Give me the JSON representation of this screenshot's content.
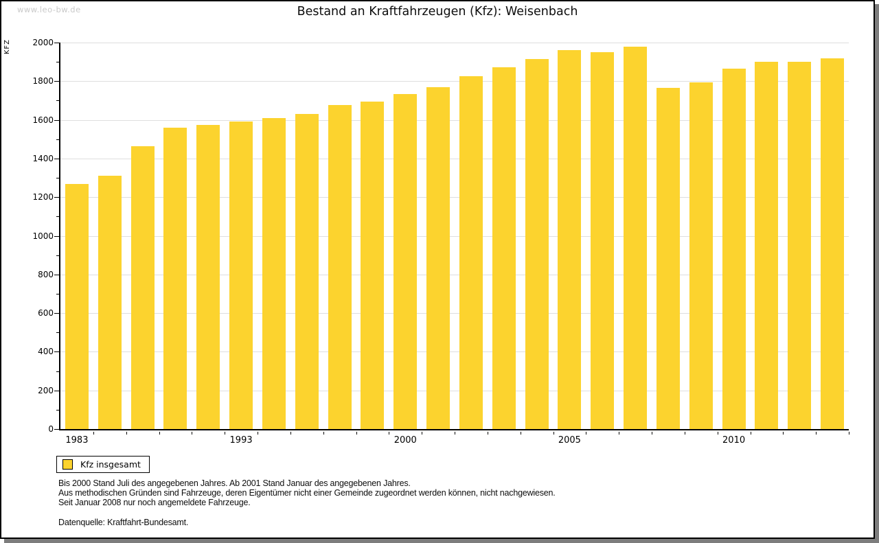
{
  "watermark": "www.leo-bw.de",
  "title": "Bestand an Kraftfahrzeugen (Kfz): Weisenbach",
  "y_axis_label": "KFZ",
  "legend": {
    "label": "Kfz insgesamt"
  },
  "footnotes": {
    "line1": "Bis 2000 Stand Juli des angegebenen Jahres. Ab 2001 Stand Januar des angegebenen Jahres.",
    "line2": "Aus methodischen Gründen sind Fahrzeuge, deren Eigentümer nicht einer Gemeinde zugeordnet werden können, nicht nachgewiesen.",
    "line3": "Seit Januar 2008 nur noch angemeldete Fahrzeuge.",
    "source": "Datenquelle: Kraftfahrt-Bundesamt."
  },
  "colors": {
    "bar": "#fcd32e",
    "grid": "#dedede",
    "axis": "#000000",
    "watermark": "#c9c9c9",
    "frame_shadow": "#7d7d7d"
  },
  "chart_data": {
    "type": "bar",
    "title": "Bestand an Kraftfahrzeugen (Kfz): Weisenbach",
    "xlabel": "",
    "ylabel": "KFZ",
    "ylim": [
      0,
      2000
    ],
    "y_major_step": 200,
    "y_minor_step": 100,
    "grid": "horizontal-major",
    "legend_position": "bottom-left",
    "series_name": "Kfz insgesamt",
    "values": [
      1268,
      1310,
      1462,
      1560,
      1572,
      1592,
      1608,
      1630,
      1678,
      1694,
      1734,
      1770,
      1826,
      1872,
      1914,
      1962,
      1950,
      1980,
      1766,
      1794,
      1864,
      1902,
      1902,
      1920
    ],
    "x_tick_labels": [
      {
        "index": 0,
        "label": "1983"
      },
      {
        "index": 5,
        "label": "1993"
      },
      {
        "index": 10,
        "label": "2000"
      },
      {
        "index": 15,
        "label": "2005"
      },
      {
        "index": 20,
        "label": "2010"
      }
    ],
    "y_tick_labels": [
      "0",
      "200",
      "400",
      "600",
      "800",
      "1000",
      "1200",
      "1400",
      "1600",
      "1800",
      "2000"
    ]
  }
}
